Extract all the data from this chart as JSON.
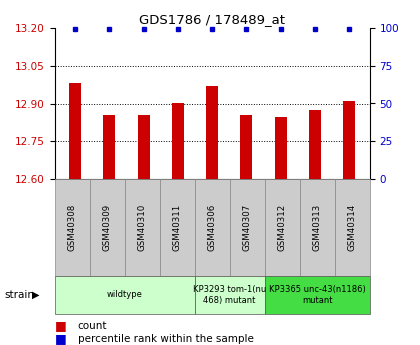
{
  "title": "GDS1786 / 178489_at",
  "samples": [
    "GSM40308",
    "GSM40309",
    "GSM40310",
    "GSM40311",
    "GSM40306",
    "GSM40307",
    "GSM40312",
    "GSM40313",
    "GSM40314"
  ],
  "counts": [
    12.98,
    12.855,
    12.855,
    12.9,
    12.97,
    12.855,
    12.845,
    12.875,
    12.91
  ],
  "percentiles": [
    100,
    100,
    100,
    100,
    100,
    100,
    100,
    100,
    100
  ],
  "ylim_left": [
    12.6,
    13.2
  ],
  "yticks_left": [
    12.6,
    12.75,
    12.9,
    13.05,
    13.2
  ],
  "ylim_right": [
    0,
    100
  ],
  "yticks_right": [
    0,
    25,
    50,
    75,
    100
  ],
  "bar_color": "#cc0000",
  "dot_color": "#0000cc",
  "bg_color": "#ffffff",
  "strain_groups": [
    {
      "label": "wildtype",
      "start": 0,
      "end": 4,
      "color": "#ccffcc"
    },
    {
      "label": "KP3293 tom-1(nu\n468) mutant",
      "start": 4,
      "end": 6,
      "color": "#ccffcc"
    },
    {
      "label": "KP3365 unc-43(n1186)\nmutant",
      "start": 6,
      "end": 9,
      "color": "#44dd44"
    }
  ],
  "ylabel_left_color": "#cc0000",
  "ylabel_right_color": "#0000cc",
  "title_color": "#000000",
  "bar_width": 0.35,
  "sample_cell_color": "#cccccc",
  "sample_cell_edge": "#888888"
}
